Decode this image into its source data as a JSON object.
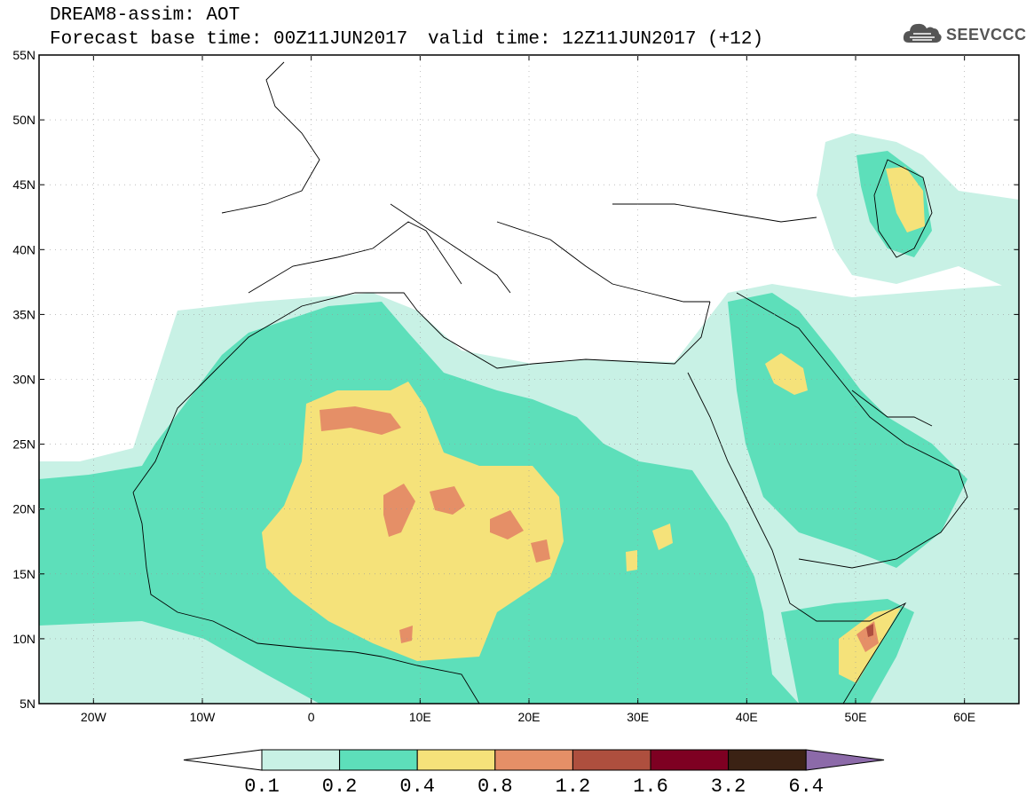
{
  "header": {
    "line1": "DREAM8-assim: AOT",
    "line2_base": "Forecast base time: 00Z11JUN2017",
    "line2_valid": "valid time: 12Z11JUN2017 (+12)"
  },
  "logo": {
    "text": "SEEVCCC",
    "icon": "cloud-icon"
  },
  "map": {
    "lat_labels": [
      "55N",
      "50N",
      "45N",
      "40N",
      "35N",
      "30N",
      "25N",
      "20N",
      "15N",
      "10N",
      "5N"
    ],
    "lon_labels": [
      "20W",
      "10W",
      "0",
      "10E",
      "20E",
      "30E",
      "40E",
      "50E",
      "60E"
    ],
    "lon_range": [
      -25,
      65
    ],
    "lat_range": [
      5,
      55
    ]
  },
  "colorbar": {
    "labels": [
      "0.1",
      "0.2",
      "0.4",
      "0.8",
      "1.2",
      "1.6",
      "3.2",
      "6.4"
    ],
    "colors": [
      "#ffffff",
      "#c8f1e5",
      "#5ddfba",
      "#f5e27a",
      "#e58f67",
      "#ae4f3e",
      "#7e0022",
      "#3b2214",
      "#8c6aa9"
    ]
  }
}
